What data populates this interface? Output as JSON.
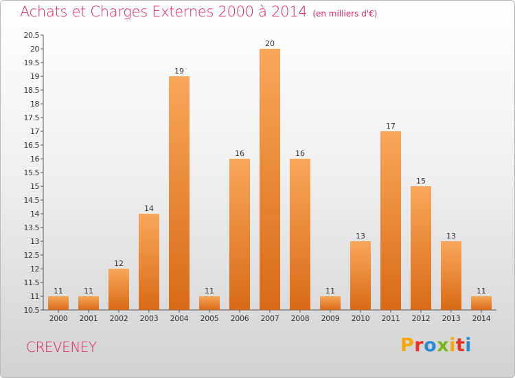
{
  "header": {
    "title": "Achats et Charges Externes 2000 à 2014",
    "unit": "(en milliers d'€)"
  },
  "footer": {
    "commune": "CREVENEY",
    "logo_text": "Proxiti",
    "logo_colors": [
      "#f7a600",
      "#e63323",
      "#2a8ad4",
      "#7bb51d",
      "#f7a600",
      "#e63323",
      "#2a8ad4"
    ]
  },
  "colors": {
    "title": "#e0245e",
    "bar_top": "#f9a75a",
    "bar_bottom": "#d86a17"
  },
  "chart_data": {
    "type": "bar",
    "categories": [
      "2000",
      "2001",
      "2002",
      "2003",
      "2004",
      "2005",
      "2006",
      "2007",
      "2008",
      "2009",
      "2010",
      "2011",
      "2012",
      "2013",
      "2014"
    ],
    "values": [
      11,
      11,
      12,
      14,
      19,
      11,
      16,
      20,
      16,
      11,
      13,
      17,
      15,
      13,
      11
    ],
    "ylim": [
      10.5,
      20.5
    ],
    "yticks": [
      "10.5",
      "11",
      "11.5",
      "12",
      "12.5",
      "13",
      "13.5",
      "14",
      "14.5",
      "15",
      "15.5",
      "16",
      "16.5",
      "17",
      "17.5",
      "18",
      "18.5",
      "19",
      "19.5",
      "20",
      "20.5"
    ],
    "grid": false,
    "xlabel": "",
    "ylabel": ""
  }
}
